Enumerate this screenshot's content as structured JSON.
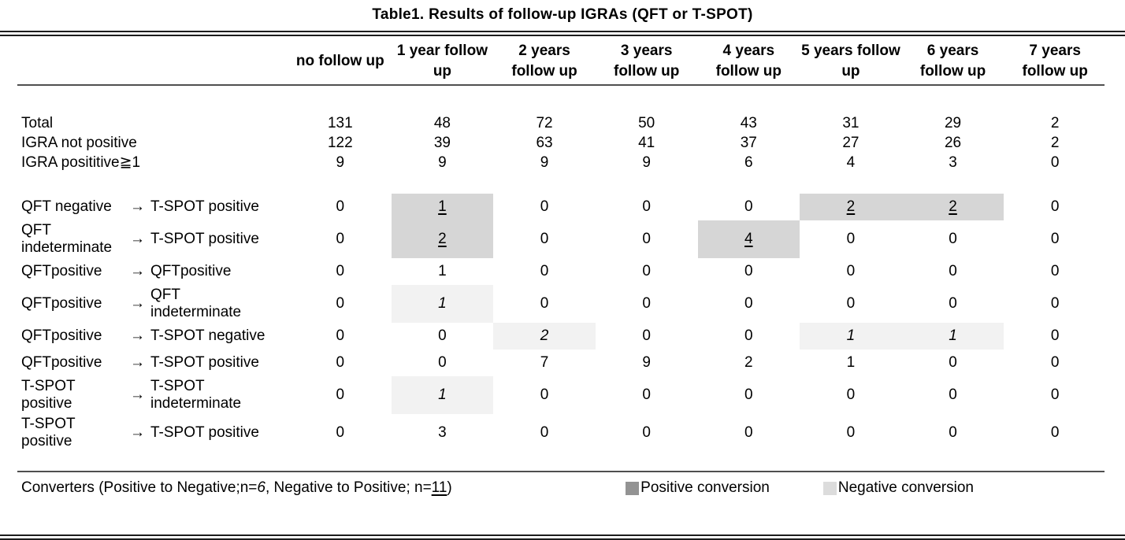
{
  "title": "Table1. Results of follow-up IGRAs (QFT or T-SPOT)",
  "glyphs": {
    "arrow": "→"
  },
  "columns": [
    "no follow up",
    "1 year follow\nup",
    "2 years\nfollow up",
    "3 years\nfollow up",
    "4 years\nfollow up",
    "5 years follow\nup",
    "6 years\nfollow up",
    "7 years\nfollow up"
  ],
  "summary_rows": [
    {
      "label": "Total",
      "values": [
        "131",
        "48",
        "72",
        "50",
        "43",
        "31",
        "29",
        "2"
      ]
    },
    {
      "label": "IGRA not positive",
      "values": [
        "122",
        "39",
        "63",
        "41",
        "37",
        "27",
        "26",
        "2"
      ]
    },
    {
      "label": "IGRA posititive≧1",
      "values": [
        "9",
        "9",
        "9",
        "9",
        "6",
        "4",
        "3",
        "0"
      ]
    }
  ],
  "conversion_rows": [
    {
      "from": "QFT negative",
      "to": "T-SPOT positive",
      "values": [
        "0",
        "1",
        "0",
        "0",
        "0",
        "2",
        "2",
        "0"
      ],
      "marks": [
        "",
        "pos",
        "",
        "",
        "",
        "pos",
        "pos",
        ""
      ]
    },
    {
      "from": "QFT\nindeterminate",
      "to": "T-SPOT positive",
      "values": [
        "0",
        "2",
        "0",
        "0",
        "4",
        "0",
        "0",
        "0"
      ],
      "marks": [
        "",
        "pos",
        "",
        "",
        "pos",
        "",
        "",
        ""
      ]
    },
    {
      "from": "QFTpositive",
      "to": "QFTpositive",
      "values": [
        "0",
        "1",
        "0",
        "0",
        "0",
        "0",
        "0",
        "0"
      ],
      "marks": [
        "",
        "",
        "",
        "",
        "",
        "",
        "",
        ""
      ]
    },
    {
      "from": "QFTpositive",
      "to": "QFT\nindeterminate",
      "values": [
        "0",
        "1",
        "0",
        "0",
        "0",
        "0",
        "0",
        "0"
      ],
      "marks": [
        "",
        "neg",
        "",
        "",
        "",
        "",
        "",
        ""
      ]
    },
    {
      "from": "QFTpositive",
      "to": "T-SPOT negative",
      "values": [
        "0",
        "0",
        "2",
        "0",
        "0",
        "1",
        "1",
        "0"
      ],
      "marks": [
        "",
        "",
        "neg",
        "",
        "",
        "neg",
        "neg",
        ""
      ]
    },
    {
      "from": "QFTpositive",
      "to": "T-SPOT positive",
      "values": [
        "0",
        "0",
        "7",
        "9",
        "2",
        "1",
        "0",
        "0"
      ],
      "marks": [
        "",
        "",
        "",
        "",
        "",
        "",
        "",
        ""
      ]
    },
    {
      "from": "T-SPOT\npositive",
      "to": "T-SPOT\nindeterminate",
      "values": [
        "0",
        "1",
        "0",
        "0",
        "0",
        "0",
        "0",
        "0"
      ],
      "marks": [
        "",
        "neg",
        "",
        "",
        "",
        "",
        "",
        ""
      ]
    },
    {
      "from": "T-SPOT\npositive",
      "to": "T-SPOT positive",
      "values": [
        "0",
        "3",
        "0",
        "0",
        "0",
        "0",
        "0",
        "0"
      ],
      "marks": [
        "",
        "",
        "",
        "",
        "",
        "",
        "",
        ""
      ]
    }
  ],
  "footer": {
    "note_prefix": "Converters (Positive to Negative;n=",
    "n_negative": "6",
    "note_mid": ", Negative to Positive; n=",
    "n_positive": "11",
    "note_suffix": ")",
    "legend": [
      {
        "label": "Positive conversion",
        "color": "#939393"
      },
      {
        "label": "Negative conversion",
        "color": "#dcdcdc"
      }
    ]
  },
  "colors": {
    "positive_cell_bg": "#d6d6d6",
    "negative_cell_bg": "#f2f2f2"
  }
}
